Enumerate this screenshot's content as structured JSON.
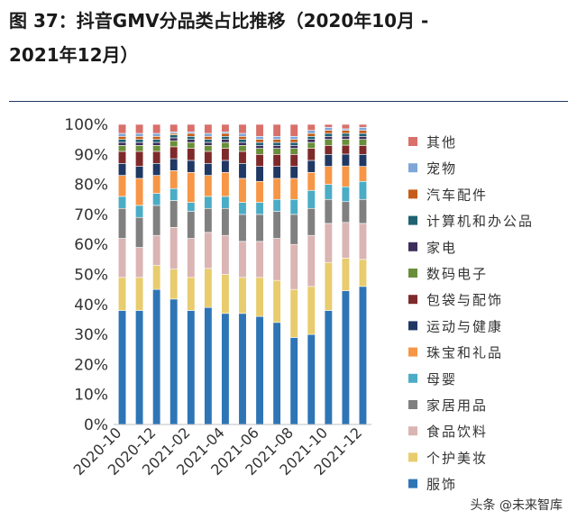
{
  "title": {
    "line1": "图 37：抖音GMV分品类占比推移（2020年10月 -",
    "line2": "2021年12月）"
  },
  "watermark": "头条 @未来智库",
  "chart_data": {
    "type": "bar",
    "stacked": true,
    "categories": [
      "2020-10",
      "2020-11",
      "2020-12",
      "2021-01",
      "2021-02",
      "2021-03",
      "2021-04",
      "2021-05",
      "2021-06",
      "2021-07",
      "2021-08",
      "2021-09",
      "2021-10",
      "2021-11",
      "2021-12"
    ],
    "x_tick_labels": [
      "2020-10",
      "2020-12",
      "2021-02",
      "2021-04",
      "2021-06",
      "2021-08",
      "2021-10",
      "2021-12"
    ],
    "y_ticks": [
      "0%",
      "10%",
      "20%",
      "30%",
      "40%",
      "50%",
      "60%",
      "70%",
      "80%",
      "90%",
      "100%"
    ],
    "ylim": [
      0,
      100
    ],
    "legend_position": "right",
    "series": [
      {
        "name": "服饰",
        "color": "#2e75b6",
        "values": [
          38,
          38,
          45,
          42,
          38,
          39,
          37,
          37,
          36,
          34,
          29,
          30,
          38,
          45,
          46
        ]
      },
      {
        "name": "个护美妆",
        "color": "#e8cc6d",
        "values": [
          11,
          11,
          8,
          10,
          11,
          13,
          13,
          12,
          13,
          14,
          16,
          16,
          16,
          11,
          9
        ]
      },
      {
        "name": "食品饮料",
        "color": "#dbb4b4",
        "values": [
          13,
          10,
          10,
          14,
          13,
          12,
          13,
          12,
          12,
          14,
          15,
          17,
          13,
          12,
          12
        ]
      },
      {
        "name": "家居用品",
        "color": "#808080",
        "values": [
          10,
          10,
          10,
          9,
          9,
          8,
          9,
          9,
          9,
          9,
          10,
          9,
          8,
          7,
          8
        ]
      },
      {
        "name": "母婴",
        "color": "#4bacc6",
        "values": [
          4,
          4,
          4,
          4,
          3,
          4,
          4,
          4,
          4,
          4,
          5,
          6,
          5,
          5,
          6
        ]
      },
      {
        "name": "珠宝和礼品",
        "color": "#f79646",
        "values": [
          7,
          9,
          6,
          6,
          10,
          7,
          8,
          8,
          7,
          7,
          7,
          6,
          6,
          7,
          5
        ]
      },
      {
        "name": "运动与健康",
        "color": "#1f3864",
        "values": [
          4,
          4,
          4,
          4,
          4,
          4,
          4,
          5,
          5,
          4,
          4,
          4,
          4,
          4,
          4
        ]
      },
      {
        "name": "包袋与配饰",
        "color": "#7f2a2a",
        "values": [
          4,
          5,
          4,
          4,
          4,
          4,
          4,
          4,
          4,
          4,
          4,
          4,
          3,
          3,
          3
        ]
      },
      {
        "name": "数码电子",
        "color": "#6a8f3a",
        "values": [
          2,
          2,
          2,
          2,
          2,
          2,
          2,
          2,
          2,
          2,
          2,
          2,
          2,
          2,
          2
        ]
      },
      {
        "name": "家电",
        "color": "#3d2d5c",
        "values": [
          1,
          1,
          1,
          1,
          1,
          1,
          1,
          1,
          1,
          1,
          1,
          1,
          1,
          1,
          1
        ]
      },
      {
        "name": "计算机和办公品",
        "color": "#1f6270",
        "values": [
          1,
          1,
          1,
          1,
          1,
          1,
          1,
          1,
          1,
          1,
          1,
          1,
          1,
          1,
          1
        ]
      },
      {
        "name": "汽车配件",
        "color": "#c65c17",
        "values": [
          1,
          1,
          1,
          0.5,
          1,
          1,
          1,
          1,
          1,
          1,
          1,
          1,
          1,
          1,
          1
        ]
      },
      {
        "name": "宠物",
        "color": "#7ea6d8",
        "values": [
          1,
          1,
          1,
          0.5,
          0.5,
          1,
          0.5,
          1,
          1,
          1,
          1,
          1,
          1,
          0.5,
          1
        ]
      },
      {
        "name": "其他",
        "color": "#d9706a",
        "values": [
          3,
          3,
          3,
          2.5,
          2.5,
          3,
          2.5,
          3,
          4,
          4,
          4,
          2,
          1,
          1.5,
          1
        ]
      }
    ]
  }
}
